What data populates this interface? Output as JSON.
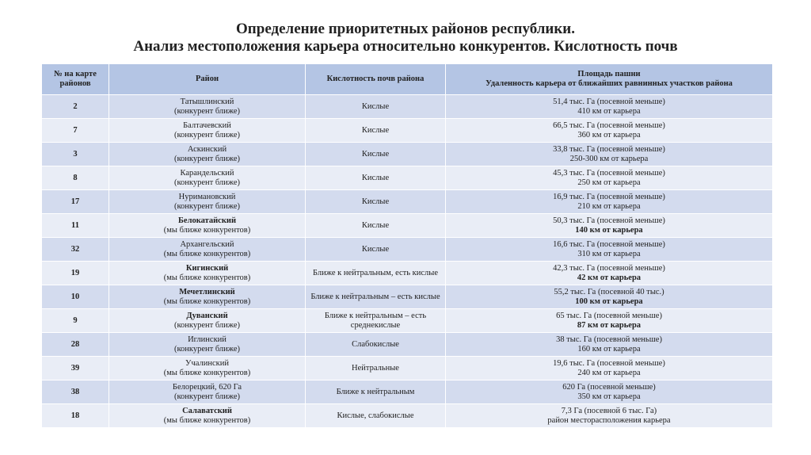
{
  "title": [
    "Определение приоритетных районов республики.",
    "Анализ местоположения карьера относительно конкурентов. Кислотность почв"
  ],
  "table": {
    "header": [
      "№ на карте районов",
      "Район",
      "Кислотность почв района",
      [
        "Площадь пашни",
        "Удаленность карьера от ближайших равнинных участков района"
      ]
    ],
    "rows": [
      {
        "num": "2",
        "district": "Татышлинский",
        "note": "(конкурент ближе)",
        "acidity": "Кислые",
        "area": "51,4 тыс. Га (посевной меньше)",
        "distance": "410 км от карьера"
      },
      {
        "num": "7",
        "district": "Балтачевский",
        "note": "(конкурент ближе)",
        "acidity": "Кислые",
        "area": "66,5 тыс. Га (посевной меньше)",
        "distance": "360 км от карьера"
      },
      {
        "num": "3",
        "district": "Аскинский",
        "note": "(конкурент ближе)",
        "acidity": "Кислые",
        "area": "33,8 тыс. Га (посевной меньше)",
        "distance": "250-300 км от карьера"
      },
      {
        "num": "8",
        "district": "Карандельский",
        "note": "(конкурент ближе)",
        "acidity": "Кислые",
        "area": "45,3 тыс. Га (посевной меньше)",
        "distance": "250 км от карьера"
      },
      {
        "num": "17",
        "district": "Нуримановский",
        "note": "(конкурент ближе)",
        "acidity": "Кислые",
        "area": "16,9 тыс. Га (посевной меньше)",
        "distance": "210 км от карьера"
      },
      {
        "num": "11",
        "district": "Белокатайский",
        "note": "(мы ближе конкурентов)",
        "acidity": "Кислые",
        "area": "50,3 тыс. Га (посевной меньше)",
        "distance": "140 км от карьера"
      },
      {
        "num": "32",
        "district": "Архангельский",
        "note": "(мы ближе конкурентов)",
        "acidity": "Кислые",
        "area": "16,6 тыс. Га (посевной меньше)",
        "distance": "310 км от карьера"
      },
      {
        "num": "19",
        "district": "Кигинский",
        "note": "(мы ближе конкурентов)",
        "acidity": "Ближе к нейтральным, есть кислые",
        "area": "42,3 тыс. Га (посевной меньше)",
        "distance": "42 км от карьера"
      },
      {
        "num": "10",
        "district": "Мечетлинский",
        "note": "(мы ближе конкурентов)",
        "acidity": "Ближе к нейтральным – есть кислые",
        "area": "55,2 тыс. Га (посевной 40 тыс.)",
        "distance": "100 км от карьера"
      },
      {
        "num": "9",
        "district": "Дуванский",
        "note": "(конкурент ближе)",
        "acidity": "Ближе к нейтральным – есть среднекислые",
        "area": "65 тыс. Га (посевной меньше)",
        "distance": "87 км от карьера"
      },
      {
        "num": "28",
        "district": "Иглинский",
        "note": "(конкурент ближе)",
        "acidity": "Слабокислые",
        "area": "38 тыс. Га (посевной меньше)",
        "distance": "160 км от карьера"
      },
      {
        "num": "39",
        "district": "Учалинский",
        "note": "(мы ближе конкурентов)",
        "acidity": "Нейтральные",
        "area": "19,6 тыс. Га (посевной меньше)",
        "distance": "240 км от карьера"
      },
      {
        "num": "38",
        "district": "Белорецкий, 620 Га",
        "note": "(конкурент ближе)",
        "acidity": "Ближе к нейтральным",
        "area": "620 Га (посевной меньше)",
        "distance": "350 км от карьера"
      },
      {
        "num": "18",
        "district": "Салаватский",
        "note": "(мы ближе конкурентов)",
        "acidity": "Кислые, слабокислые",
        "area": "7,3 Га (посевной 6 тыс. Га)",
        "distance": "район месторасположения карьера"
      }
    ]
  }
}
